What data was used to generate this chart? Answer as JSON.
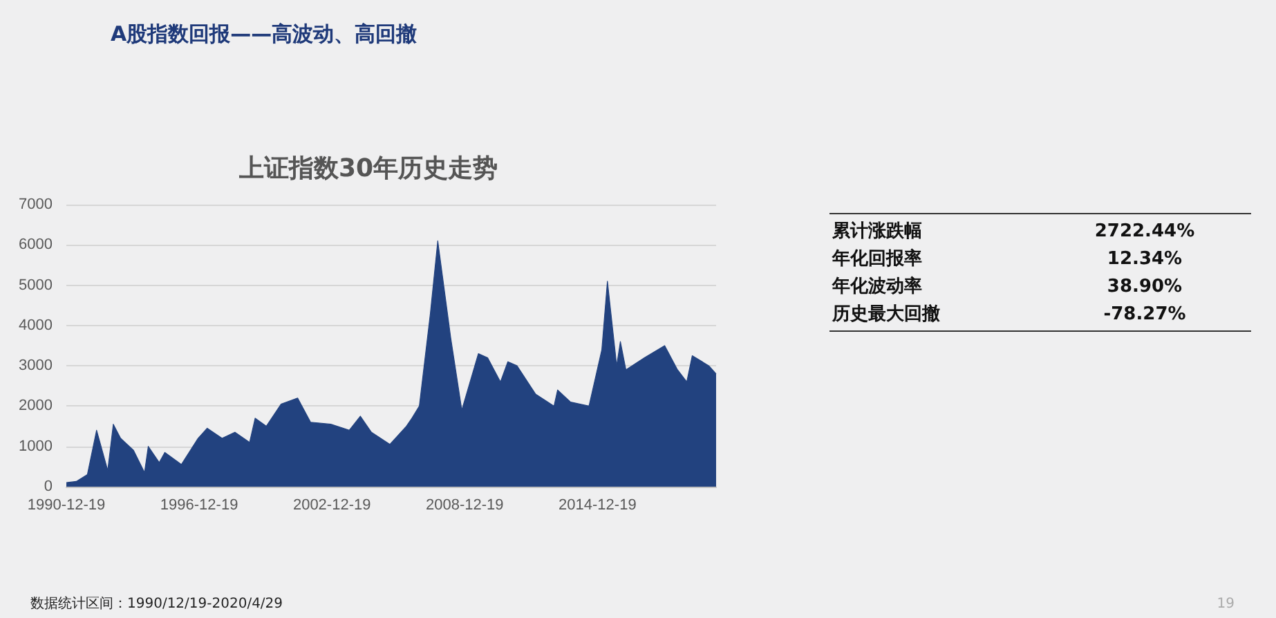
{
  "chart_data": [
    {
      "type": "area",
      "title": "A股指数回报——高波动、高回撤",
      "subtitle": "上证指数30年历史走势",
      "x": [
        "1990-12-19",
        "1991-06",
        "1991-12",
        "1992-05",
        "1992-11",
        "1993-02",
        "1993-06",
        "1994-01",
        "1994-07",
        "1994-09",
        "1995-03",
        "1995-06",
        "1996-03",
        "1996-12",
        "1997-05",
        "1998-01",
        "1998-08",
        "1999-04",
        "1999-07",
        "2000-01",
        "2000-09",
        "2001-06",
        "2002-01",
        "2002-12",
        "2003-10",
        "2004-04",
        "2004-10",
        "2005-08",
        "2006-05",
        "2006-08",
        "2006-12",
        "2007-06",
        "2007-10",
        "2008-05",
        "2008-11",
        "2009-08",
        "2010-01",
        "2010-08",
        "2010-12",
        "2011-05",
        "2012-03",
        "2013-01",
        "2013-03",
        "2013-10",
        "2014-08",
        "2015-03",
        "2015-06",
        "2015-11",
        "2016-01",
        "2016-04",
        "2017-02",
        "2018-01",
        "2018-08",
        "2019-01",
        "2019-04",
        "2020-01",
        "2020-04-29"
      ],
      "series": [
        {
          "color": "#22427f",
          "values": [
            100,
            130,
            300,
            1400,
            400,
            1550,
            1200,
            900,
            350,
            1000,
            600,
            850,
            550,
            1200,
            1450,
            1200,
            1350,
            1100,
            1700,
            1500,
            2050,
            2200,
            1600,
            1550,
            1400,
            1750,
            1350,
            1050,
            1500,
            1700,
            2000,
            4300,
            6100,
            3700,
            1900,
            3300,
            3200,
            2600,
            3100,
            3000,
            2300,
            2000,
            2400,
            2100,
            2000,
            3400,
            5100,
            3000,
            3600,
            2900,
            3200,
            3500,
            2900,
            2600,
            3250,
            3000,
            2800
          ]
        }
      ],
      "xlim": [
        "1990-12-19",
        "2020-04-29"
      ],
      "xticks": [
        "1990-12-19",
        "1996-12-19",
        "2002-12-19",
        "2008-12-19",
        "2014-12-19"
      ],
      "ylim": [
        0,
        7000
      ],
      "yticks": [
        0,
        1000,
        2000,
        3000,
        4000,
        5000,
        6000,
        7000
      ],
      "grid": "y",
      "annotations": [
        "数据统计区间：1990/12/19-2020/4/29",
        "19"
      ]
    },
    {
      "type": "other",
      "annotations": [
        "累计涨跌幅",
        "2722.44%",
        "年化回报率",
        "12.34%",
        "年化波动率",
        "38.90%",
        "历史最大回撤",
        "-78.27%"
      ]
    }
  ]
}
